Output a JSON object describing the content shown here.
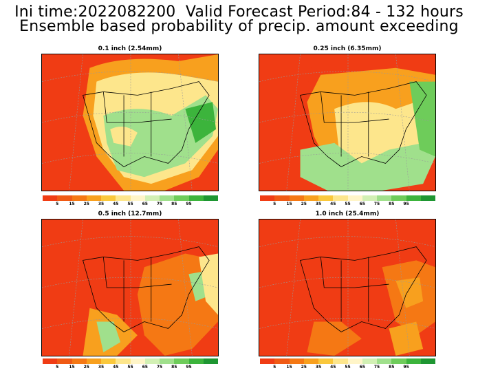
{
  "header": {
    "line1": "Ini time:2022082200  Valid Forecast Period:84 - 132 hours",
    "line2": "Ensemble based probability of precip. amount exceeding"
  },
  "panels": [
    {
      "title": "0.1 inch (2.54mm)"
    },
    {
      "title": "0.25 inch (6.35mm)"
    },
    {
      "title": "0.5 inch (12.7mm)"
    },
    {
      "title": "1.0 inch (25.4mm)"
    }
  ],
  "colorbar": {
    "colors": [
      "#f03c14",
      "#f05a14",
      "#f57814",
      "#f8a01e",
      "#fac83c",
      "#fde68c",
      "#fff5c8",
      "#d2f0b4",
      "#a0e08c",
      "#6ecc5a",
      "#3cb43c",
      "#1e9632"
    ],
    "labels": [
      "5",
      "15",
      "25",
      "35",
      "45",
      "55",
      "65",
      "75",
      "85",
      "95"
    ]
  }
}
